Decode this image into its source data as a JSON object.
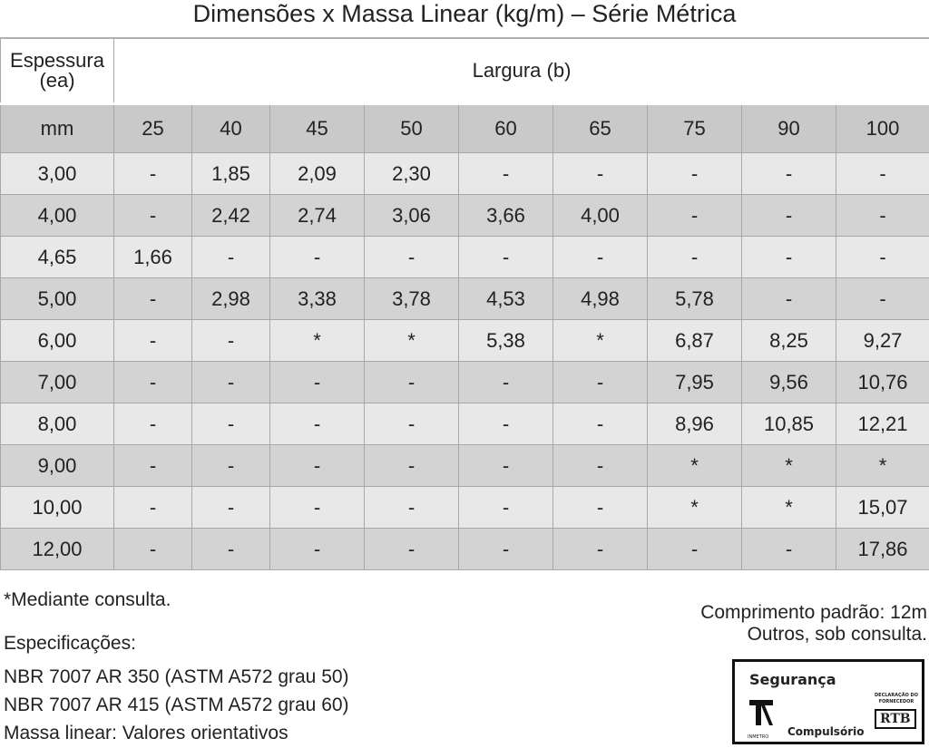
{
  "title": "Dimensões x Massa Linear (kg/m) – Série Métrica",
  "table": {
    "header": {
      "thickness": [
        "Espessura",
        "(ea)"
      ],
      "width": "Largura (b)"
    },
    "unit": "mm",
    "columns": [
      "25",
      "40",
      "45",
      "50",
      "60",
      "65",
      "75",
      "90",
      "100"
    ],
    "rows": [
      [
        "3,00",
        "-",
        "1,85",
        "2,09",
        "2,30",
        "-",
        "-",
        "-",
        "-",
        "-"
      ],
      [
        "4,00",
        "-",
        "2,42",
        "2,74",
        "3,06",
        "3,66",
        "4,00",
        "-",
        "-",
        "-"
      ],
      [
        "4,65",
        "1,66",
        "-",
        "-",
        "-",
        "-",
        "-",
        "-",
        "-",
        "-"
      ],
      [
        "5,00",
        "-",
        "2,98",
        "3,38",
        "3,78",
        "4,53",
        "4,98",
        "5,78",
        "-",
        "-"
      ],
      [
        "6,00",
        "-",
        "-",
        "*",
        "*",
        "5,38",
        "*",
        "6,87",
        "8,25",
        "9,27"
      ],
      [
        "7,00",
        "-",
        "-",
        "-",
        "-",
        "-",
        "-",
        "7,95",
        "9,56",
        "10,76"
      ],
      [
        "8,00",
        "-",
        "-",
        "-",
        "-",
        "-",
        "-",
        "8,96",
        "10,85",
        "12,21"
      ],
      [
        "9,00",
        "-",
        "-",
        "-",
        "-",
        "-",
        "-",
        "*",
        "*",
        "*"
      ],
      [
        "10,00",
        "-",
        "-",
        "-",
        "-",
        "-",
        "-",
        "*",
        "*",
        "15,07"
      ],
      [
        "12,00",
        "-",
        "-",
        "-",
        "-",
        "-",
        "-",
        "-",
        "-",
        "17,86"
      ]
    ]
  },
  "notes": {
    "footnote": "*Mediante consulta.",
    "specs_title": "Especificações:",
    "specs": [
      "NBR 7007 AR 350 (ASTM A572 grau 50)",
      "NBR 7007 AR 415 (ASTM A572 grau 60)",
      "Massa linear: Valores orientativos"
    ],
    "length": [
      "Comprimento padrão: 12m",
      "Outros, sob consulta."
    ]
  },
  "seal": {
    "title": "Segurança",
    "subtitle": "Compulsório",
    "brand": "RTB",
    "declaration": "DECLARAÇÃO DO FORNECEDOR",
    "agency": "INMETRO"
  }
}
